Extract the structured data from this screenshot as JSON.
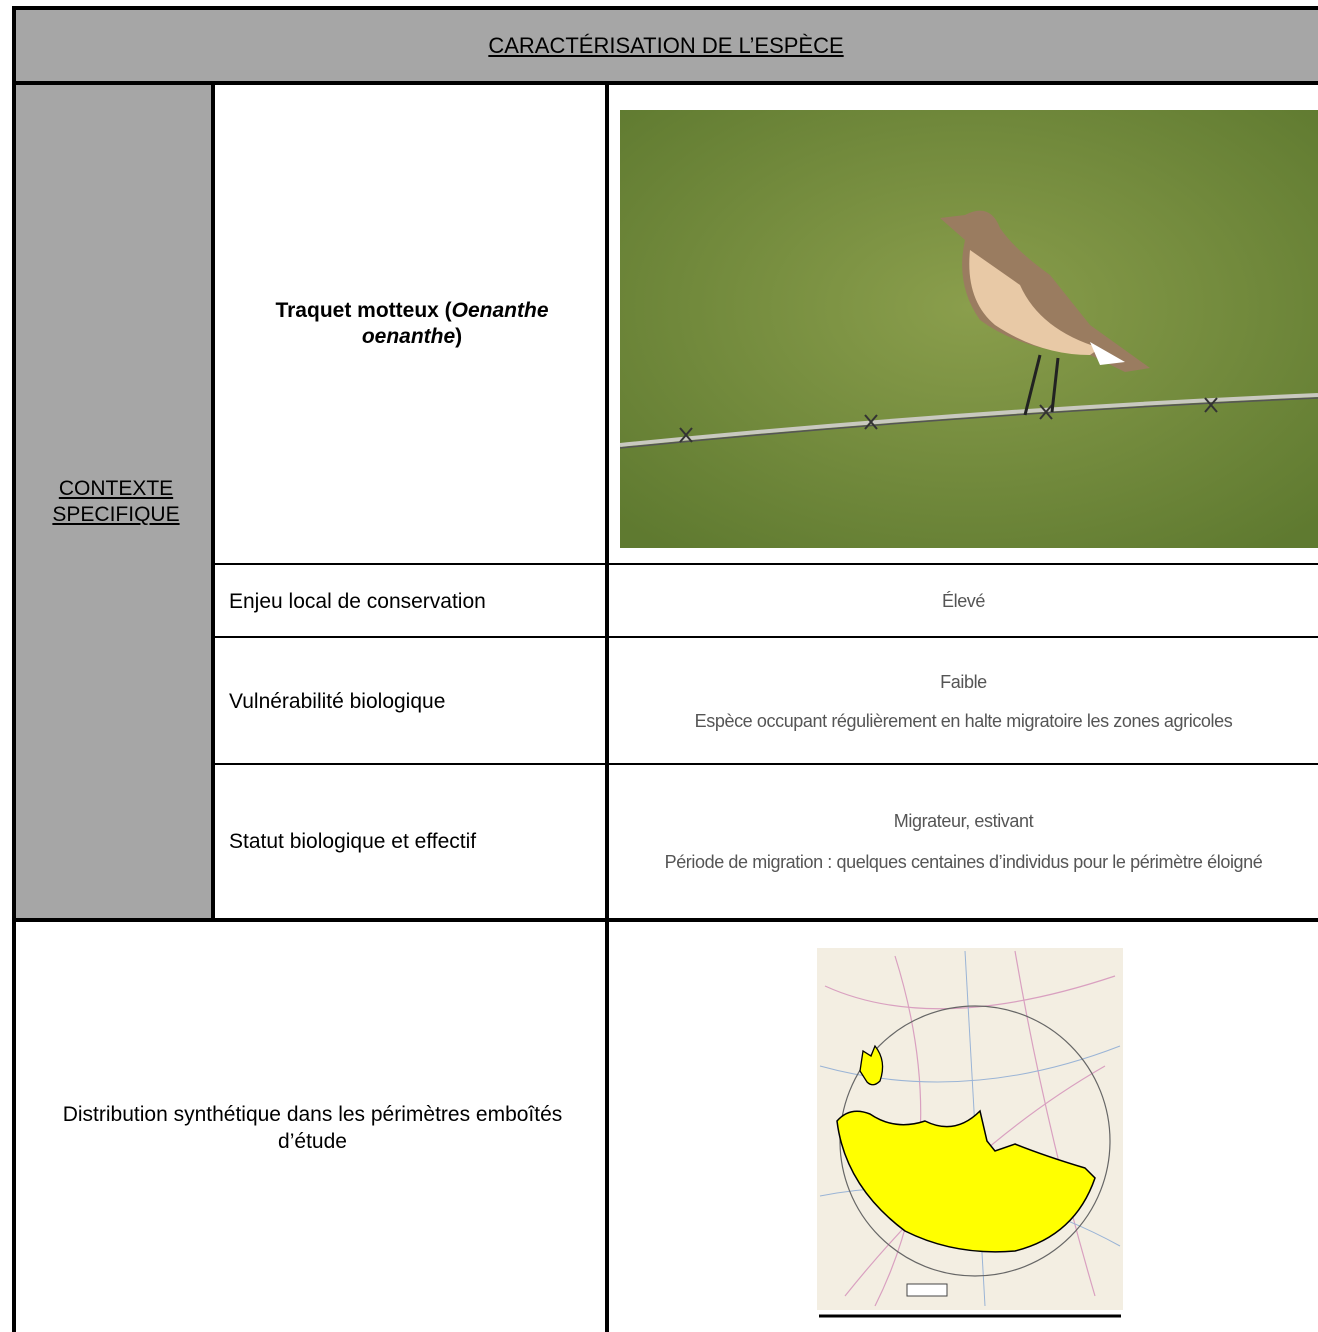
{
  "header": {
    "title": "CARACTÉRISATION DE L’ESPÈCE"
  },
  "context_label": "CONTEXTE SPECIFIQUE",
  "species": {
    "name_start": "Traquet motteux (",
    "name_italic": "Oenanthe oenanthe",
    "name_end": ")"
  },
  "rows": [
    {
      "label": "Enjeu local de conservation",
      "lines": [
        "Élevé"
      ]
    },
    {
      "label": "Vulnérabilité biologique",
      "lines": [
        "Faible",
        "Espèce occupant régulièrement en halte migratoire les zones agricoles"
      ]
    },
    {
      "label": "Statut biologique et effectif",
      "lines": [
        "Migrateur, estivant",
        "Période de migration : quelques centaines d’individus pour le périmètre éloigné"
      ]
    }
  ],
  "distribution": {
    "label": "Distribution synthétique dans les périmètres emboîtés d’étude"
  }
}
